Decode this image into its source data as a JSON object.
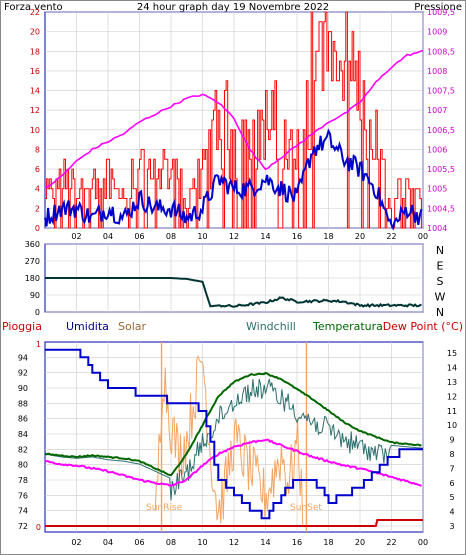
{
  "colors": {
    "wind": "#ff0000",
    "wind_avg": "#0000cc",
    "pressure": "#ff00ff",
    "direction": "#003333",
    "humidity": "#0000cc",
    "solar": "#f4a460",
    "windchill": "#2f6f6f",
    "temperature": "#006600",
    "dewpoint": "#ff00ff",
    "rain": "#cc0000",
    "frame": "#0000aa",
    "grid": "#cccccc"
  },
  "top_panel": {
    "left_title": "Forza vento",
    "center_title": "24 hour graph day   19 Novembre 2022",
    "right_title": "Pressione",
    "x_ticks": [
      "02",
      "04",
      "06",
      "08",
      "10",
      "12",
      "14",
      "16",
      "18",
      "20",
      "22",
      "00"
    ],
    "y_left": [
      "0",
      "2",
      "4",
      "6",
      "8",
      "10",
      "12",
      "14",
      "16",
      "18",
      "20",
      "22"
    ],
    "y_right": [
      "1004",
      "1004,5",
      "1005",
      "1005,5",
      "1006",
      "1006,5",
      "1007",
      "1007,5",
      "1008",
      "1008,5",
      "1009",
      "1009,5"
    ]
  },
  "direction_panel": {
    "y_left": [
      "0",
      "90",
      "180",
      "270",
      "360"
    ],
    "compass": [
      "N",
      "W",
      "S",
      "E",
      "N"
    ]
  },
  "bottom_panel": {
    "legend": {
      "rain": "Pioggia",
      "humidity": "Umidita",
      "solar": "Solar",
      "windchill": "Windchill",
      "temperature": "Temperatura",
      "dewpoint": "Dew Point (°C)"
    },
    "y_left": [
      "72",
      "74",
      "76",
      "78",
      "80",
      "82",
      "84",
      "86",
      "88",
      "90",
      "92",
      "94"
    ],
    "y_rain": [
      "0",
      "1"
    ],
    "y_right": [
      "3",
      "4",
      "5",
      "6",
      "7",
      "8",
      "9",
      "10",
      "11",
      "12",
      "13",
      "14",
      "15"
    ],
    "x_ticks": [
      "02",
      "04",
      "06",
      "08",
      "10",
      "12",
      "14",
      "16",
      "18",
      "20",
      "22",
      "00"
    ],
    "sunrise": "SunRise",
    "sunset": "SunSet"
  },
  "chart_data": [
    {
      "type": "line",
      "title": "24 hour graph day   19 Novembre 2022",
      "x_unit": "hour",
      "series": [
        {
          "name": "Forza vento",
          "axis": "left",
          "hours": [
            0,
            1,
            2,
            3,
            4,
            5,
            6,
            7,
            8,
            9,
            10,
            11,
            12,
            13,
            14,
            15,
            16,
            17,
            18,
            19,
            20,
            21,
            22,
            23,
            24
          ],
          "values": [
            1,
            2,
            2,
            1,
            2,
            1,
            3,
            2,
            2,
            1,
            2,
            5,
            4,
            4,
            5,
            4,
            3,
            8,
            9,
            7,
            6,
            4,
            0,
            2,
            1
          ]
        },
        {
          "name": "Pressione",
          "axis": "right",
          "hours": [
            0,
            1,
            2,
            3,
            4,
            5,
            6,
            7,
            8,
            9,
            10,
            11,
            12,
            13,
            14,
            15,
            16,
            17,
            18,
            19,
            20,
            21,
            22,
            23,
            24
          ],
          "values": [
            1005.0,
            1005.3,
            1005.7,
            1006.0,
            1006.2,
            1006.4,
            1006.7,
            1006.9,
            1007.1,
            1007.3,
            1007.4,
            1007.2,
            1006.8,
            1006.0,
            1005.5,
            1005.8,
            1006.1,
            1006.4,
            1006.7,
            1006.9,
            1007.2,
            1007.7,
            1008.1,
            1008.4,
            1008.5
          ]
        }
      ],
      "ylim_left": [
        0,
        22
      ],
      "ylim_right": [
        1004,
        1009.5
      ]
    },
    {
      "type": "line",
      "x_unit": "hour",
      "series": [
        {
          "name": "wind direction",
          "hours": [
            0,
            2,
            4,
            6,
            8,
            9,
            10,
            10.5,
            11,
            12,
            14,
            15,
            16,
            18,
            19,
            20,
            22,
            24
          ],
          "values": [
            180,
            180,
            180,
            180,
            180,
            175,
            160,
            30,
            35,
            30,
            50,
            75,
            55,
            60,
            55,
            35,
            35,
            35
          ]
        }
      ],
      "ylim": [
        0,
        360
      ]
    },
    {
      "type": "line",
      "x_unit": "hour",
      "series": [
        {
          "name": "Umidita",
          "axis": "left",
          "hours": [
            0,
            2,
            3,
            4,
            5,
            6,
            7,
            8,
            9,
            10,
            11,
            12,
            13,
            14,
            15,
            16,
            17,
            18,
            19,
            20,
            21,
            22,
            23,
            24
          ],
          "values": [
            95,
            95,
            92,
            90,
            90,
            89,
            89,
            88,
            88,
            87,
            78,
            76,
            74,
            73,
            76,
            78,
            78,
            75,
            76,
            77,
            79,
            81,
            82,
            82
          ]
        },
        {
          "name": "Temperatura",
          "axis": "right",
          "hours": [
            0,
            1,
            2,
            3,
            4,
            5,
            6,
            7,
            8,
            9,
            10,
            11,
            12,
            13,
            14,
            15,
            16,
            17,
            18,
            19,
            20,
            21,
            22,
            23,
            24
          ],
          "values": [
            8.0,
            7.9,
            7.8,
            7.9,
            7.8,
            7.7,
            7.5,
            7.0,
            6.5,
            8.0,
            10.0,
            12.0,
            13.0,
            13.5,
            13.6,
            13.2,
            12.5,
            11.8,
            11.0,
            10.2,
            9.6,
            9.2,
            8.8,
            8.7,
            8.6
          ]
        },
        {
          "name": "Windchill",
          "axis": "right",
          "hours": [
            0,
            1,
            2,
            3,
            4,
            5,
            6,
            7,
            8,
            9,
            10,
            11,
            12,
            13,
            14,
            15,
            16,
            17,
            18,
            19,
            20,
            21,
            22,
            23,
            24
          ],
          "values": [
            8.0,
            7.8,
            7.7,
            7.8,
            7.6,
            7.5,
            7.3,
            6.8,
            6.3,
            7.5,
            9.5,
            11.2,
            12.5,
            13.2,
            13.4,
            12.7,
            11.8,
            11.0,
            10.5,
            9.8,
            9.3,
            8.9,
            8.6,
            8.5,
            8.4
          ]
        },
        {
          "name": "Dew Point (°C)",
          "axis": "right",
          "hours": [
            0,
            1,
            2,
            3,
            4,
            5,
            6,
            7,
            8,
            9,
            10,
            11,
            12,
            13,
            14,
            15,
            16,
            17,
            18,
            19,
            20,
            21,
            22,
            23,
            24
          ],
          "values": [
            7.5,
            7.3,
            7.2,
            7.0,
            6.8,
            6.5,
            6.2,
            6.0,
            5.8,
            6.2,
            7.2,
            8.0,
            8.5,
            8.8,
            9.0,
            8.6,
            8.2,
            7.8,
            7.5,
            7.2,
            7.0,
            6.7,
            6.4,
            6.1,
            5.8
          ]
        },
        {
          "name": "Solar",
          "axis": "right",
          "hours": [
            7.0,
            7.5,
            8.0,
            8.5,
            9.0,
            9.5,
            10.0,
            10.5,
            11.0,
            11.5,
            12.0,
            13.0,
            14.0,
            15.0,
            15.5,
            16.0,
            16.5
          ],
          "values": [
            3,
            14,
            10,
            8,
            9,
            12,
            15,
            8,
            4,
            6,
            9,
            7,
            5,
            8,
            6,
            9,
            3
          ]
        },
        {
          "name": "Pioggia",
          "axis": "rain",
          "hours": [
            0,
            21,
            21.1,
            24
          ],
          "values": [
            0,
            0,
            1,
            1
          ]
        }
      ],
      "ylim_left": [
        72,
        96
      ],
      "ylim_right": [
        3,
        15.5
      ],
      "sunrise_hour": 7.4,
      "sunset_hour": 16.6
    }
  ]
}
